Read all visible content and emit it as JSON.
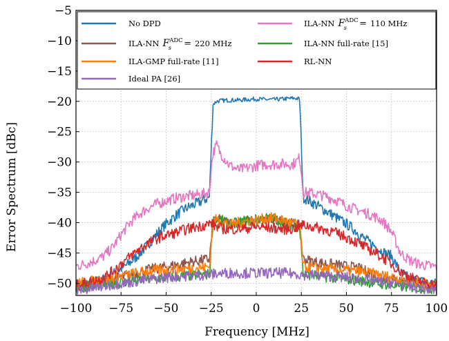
{
  "chart_data": {
    "type": "line",
    "title": "",
    "xlabel": "Frequency [MHz]",
    "ylabel": "Error Spectrum [dBc]",
    "xlim": [
      -100,
      100
    ],
    "ylim": [
      -52,
      -5
    ],
    "xticks": [
      -100,
      -75,
      -50,
      -25,
      0,
      25,
      50,
      75,
      100
    ],
    "yticks": [
      -5,
      -10,
      -15,
      -20,
      -25,
      -30,
      -35,
      -40,
      -45,
      -50
    ],
    "xtick_labels": [
      "−100",
      "−75",
      "−50",
      "−25",
      "0",
      "25",
      "50",
      "75",
      "100"
    ],
    "ytick_labels": [
      "−5",
      "−10",
      "−15",
      "−20",
      "−25",
      "−30",
      "−35",
      "−40",
      "−45",
      "−50"
    ],
    "grid": true,
    "legend_position": "top",
    "x": [
      -100,
      -95,
      -90,
      -85,
      -80,
      -75,
      -70,
      -65,
      -60,
      -55,
      -50,
      -45,
      -40,
      -35,
      -30,
      -26,
      -25,
      -24,
      -22,
      -20,
      -15,
      -10,
      -5,
      0,
      5,
      10,
      15,
      20,
      22,
      24,
      25,
      26,
      30,
      35,
      40,
      45,
      50,
      55,
      60,
      65,
      70,
      75,
      80,
      85,
      90,
      95,
      100
    ],
    "series": [
      {
        "name": "No DPD",
        "color": "#1f77b4",
        "values": [
          -50.3,
          -50.1,
          -49.8,
          -49.4,
          -48.6,
          -47.6,
          -46.6,
          -45.2,
          -43.6,
          -41.8,
          -40.2,
          -38.9,
          -37.8,
          -37.1,
          -36.4,
          -35.8,
          -28.0,
          -20.5,
          -20.0,
          -19.9,
          -19.8,
          -19.8,
          -19.7,
          -19.6,
          -19.7,
          -19.7,
          -19.6,
          -19.5,
          -19.5,
          -19.6,
          -27.0,
          -35.8,
          -36.5,
          -37.4,
          -38.3,
          -39.3,
          -40.2,
          -41.3,
          -42.7,
          -43.7,
          -44.8,
          -45.5,
          -48.3,
          -49.2,
          -49.6,
          -49.9,
          -50.1
        ]
      },
      {
        "name": "ILA-NN F_s^ADC = 110 MHz",
        "color": "#e377c2",
        "values": [
          -47.2,
          -46.8,
          -46.3,
          -45.6,
          -44.2,
          -42.0,
          -40.0,
          -38.6,
          -37.6,
          -36.9,
          -36.4,
          -36.0,
          -35.7,
          -35.5,
          -35.3,
          -35.0,
          -31.0,
          -28.5,
          -27.2,
          -28.5,
          -30.5,
          -31.3,
          -31.0,
          -30.6,
          -30.4,
          -30.4,
          -30.3,
          -30.4,
          -30.0,
          -29.3,
          -31.5,
          -35.0,
          -35.1,
          -35.4,
          -35.8,
          -36.4,
          -37.2,
          -37.8,
          -38.3,
          -38.9,
          -39.7,
          -41.5,
          -45.0,
          -46.2,
          -46.8,
          -47.1,
          -47.3
        ]
      },
      {
        "name": "ILA-NN F_s^ADC = 220 MHz",
        "color": "#8c564b",
        "values": [
          -50.2,
          -50.0,
          -49.8,
          -49.6,
          -49.3,
          -49.0,
          -48.6,
          -48.2,
          -47.8,
          -47.5,
          -47.3,
          -47.0,
          -46.7,
          -46.4,
          -46.2,
          -46.0,
          -43.0,
          -40.0,
          -39.4,
          -39.6,
          -40.1,
          -39.9,
          -39.8,
          -39.9,
          -39.7,
          -39.6,
          -39.9,
          -40.2,
          -40.2,
          -40.6,
          -43.0,
          -46.0,
          -46.3,
          -46.6,
          -46.8,
          -47.0,
          -47.2,
          -47.4,
          -47.9,
          -48.5,
          -48.9,
          -49.3,
          -49.6,
          -49.9,
          -50.1,
          -50.3,
          -50.5
        ]
      },
      {
        "name": "ILA-NN full-rate [15]",
        "color": "#2ca02c",
        "values": [
          -50.8,
          -50.6,
          -50.4,
          -50.2,
          -50.0,
          -49.8,
          -49.6,
          -49.5,
          -49.3,
          -49.2,
          -49.0,
          -48.9,
          -48.8,
          -48.7,
          -48.6,
          -48.5,
          -44.0,
          -40.0,
          -39.3,
          -39.5,
          -40.3,
          -40.0,
          -39.6,
          -39.5,
          -39.2,
          -39.4,
          -39.9,
          -40.4,
          -40.6,
          -40.9,
          -44.0,
          -48.5,
          -48.6,
          -48.8,
          -49.0,
          -49.1,
          -49.3,
          -49.5,
          -49.7,
          -49.9,
          -50.1,
          -50.3,
          -50.5,
          -50.6,
          -50.7,
          -50.8,
          -50.9
        ]
      },
      {
        "name": "ILA-GMP full-rate [11]",
        "color": "#ff7f0e",
        "values": [
          -50.0,
          -49.8,
          -49.6,
          -49.4,
          -49.1,
          -48.8,
          -48.5,
          -48.2,
          -48.0,
          -47.9,
          -47.8,
          -47.7,
          -47.6,
          -47.5,
          -47.4,
          -47.3,
          -43.5,
          -40.0,
          -39.4,
          -39.6,
          -40.4,
          -40.0,
          -39.7,
          -39.6,
          -39.3,
          -39.2,
          -39.6,
          -40.1,
          -40.2,
          -40.4,
          -43.5,
          -47.3,
          -47.4,
          -47.5,
          -47.7,
          -47.8,
          -47.9,
          -48.0,
          -48.2,
          -48.4,
          -48.7,
          -49.0,
          -49.3,
          -49.6,
          -49.9,
          -50.2,
          -50.4
        ]
      },
      {
        "name": "RL-NN",
        "color": "#d62728",
        "values": [
          -50.3,
          -50.0,
          -49.6,
          -49.1,
          -48.1,
          -46.8,
          -45.6,
          -44.4,
          -43.4,
          -42.6,
          -42.1,
          -41.7,
          -41.2,
          -40.8,
          -40.5,
          -40.2,
          -40.0,
          -40.3,
          -40.6,
          -40.9,
          -41.1,
          -41.0,
          -40.9,
          -40.7,
          -40.8,
          -40.9,
          -41.1,
          -41.0,
          -40.8,
          -40.6,
          -40.5,
          -40.4,
          -40.6,
          -40.9,
          -41.3,
          -41.8,
          -42.4,
          -43.1,
          -44.0,
          -44.8,
          -45.7,
          -46.8,
          -48.0,
          -48.9,
          -49.6,
          -50.0,
          -50.3
        ]
      },
      {
        "name": "Ideal PA [26]",
        "color": "#9467bd",
        "values": [
          -51.2,
          -51.0,
          -50.8,
          -50.5,
          -50.2,
          -50.0,
          -49.8,
          -49.6,
          -49.4,
          -49.2,
          -49.0,
          -48.9,
          -48.8,
          -48.7,
          -48.6,
          -48.6,
          -48.5,
          -48.5,
          -48.4,
          -48.4,
          -48.3,
          -48.3,
          -48.3,
          -48.3,
          -48.3,
          -48.3,
          -48.3,
          -48.4,
          -48.4,
          -48.5,
          -48.5,
          -48.6,
          -48.6,
          -48.7,
          -48.8,
          -48.9,
          -49.0,
          -49.2,
          -49.4,
          -49.6,
          -49.8,
          -50.0,
          -50.2,
          -50.5,
          -50.8,
          -51.0,
          -51.2
        ]
      }
    ],
    "legend": [
      {
        "label": "No DPD",
        "formula": false,
        "color": "#1f77b4"
      },
      {
        "label": "ILA-NN",
        "formula": true,
        "freq": "110 MHz",
        "color": "#e377c2"
      },
      {
        "label": "ILA-NN",
        "formula": true,
        "freq": "220 MHz",
        "color": "#8c564b"
      },
      {
        "label": "ILA-NN full-rate [15]",
        "formula": false,
        "color": "#2ca02c"
      },
      {
        "label": "ILA-GMP full-rate [11]",
        "formula": false,
        "color": "#ff7f0e"
      },
      {
        "label": "RL-NN",
        "formula": false,
        "color": "#d62728"
      },
      {
        "label": "Ideal PA [26]",
        "formula": false,
        "color": "#9467bd"
      }
    ],
    "formula_symbol": "F",
    "formula_sub": "s",
    "formula_sup": "ADC",
    "formula_eq": "="
  }
}
